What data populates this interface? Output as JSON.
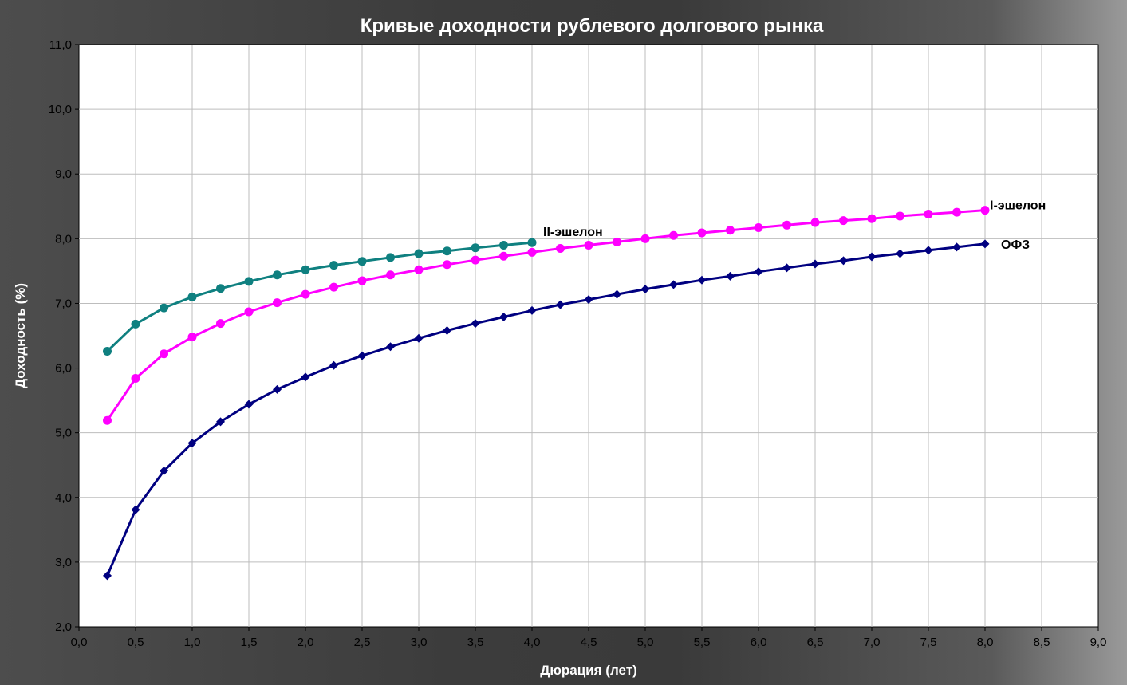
{
  "chart_data": {
    "type": "line",
    "title": "Кривые доходности рублевого долгового рынка",
    "xlabel": "Дюрация (лет)",
    "ylabel": "Доходность (%)",
    "xlim": [
      0,
      9
    ],
    "ylim": [
      2,
      11
    ],
    "x_ticks": [
      "0,0",
      "0,5",
      "1,0",
      "1,5",
      "2,0",
      "2,5",
      "3,0",
      "3,5",
      "4,0",
      "4,5",
      "5,0",
      "5,5",
      "6,0",
      "6,5",
      "7,0",
      "7,5",
      "8,0",
      "8,5",
      "9,0"
    ],
    "y_ticks": [
      "2,0",
      "3,0",
      "4,0",
      "5,0",
      "6,0",
      "7,0",
      "8,0",
      "9,0",
      "10,0",
      "11,0"
    ],
    "grid": true,
    "series": [
      {
        "name": "II-эшелон",
        "color": "#0f8080",
        "marker": "circle",
        "x": [
          0.25,
          0.5,
          0.75,
          1.0,
          1.25,
          1.5,
          1.75,
          2.0,
          2.25,
          2.5,
          2.75,
          3.0,
          3.25,
          3.5,
          3.75,
          4.0
        ],
        "y": [
          6.26,
          6.68,
          6.93,
          7.1,
          7.23,
          7.34,
          7.44,
          7.52,
          7.59,
          7.65,
          7.71,
          7.77,
          7.81,
          7.86,
          7.9,
          7.94
        ]
      },
      {
        "name": "I-эшелон",
        "color": "#ff00ff",
        "marker": "circle",
        "x": [
          0.25,
          0.5,
          0.75,
          1.0,
          1.25,
          1.5,
          1.75,
          2.0,
          2.25,
          2.5,
          2.75,
          3.0,
          3.25,
          3.5,
          3.75,
          4.0,
          4.25,
          4.5,
          4.75,
          5.0,
          5.25,
          5.5,
          5.75,
          6.0,
          6.25,
          6.5,
          6.75,
          7.0,
          7.25,
          7.5,
          7.75,
          8.0
        ],
        "y": [
          5.19,
          5.84,
          6.22,
          6.48,
          6.69,
          6.87,
          7.01,
          7.14,
          7.25,
          7.35,
          7.44,
          7.52,
          7.6,
          7.67,
          7.73,
          7.79,
          7.85,
          7.9,
          7.95,
          8.0,
          8.05,
          8.09,
          8.13,
          8.17,
          8.21,
          8.25,
          8.28,
          8.31,
          8.35,
          8.38,
          8.41,
          8.44
        ]
      },
      {
        "name": "ОФЗ",
        "color": "#000080",
        "marker": "diamond",
        "x": [
          0.25,
          0.5,
          0.75,
          1.0,
          1.25,
          1.5,
          1.75,
          2.0,
          2.25,
          2.5,
          2.75,
          3.0,
          3.25,
          3.5,
          3.75,
          4.0,
          4.25,
          4.5,
          4.75,
          5.0,
          5.25,
          5.5,
          5.75,
          6.0,
          6.25,
          6.5,
          6.75,
          7.0,
          7.25,
          7.5,
          7.75,
          8.0
        ],
        "y": [
          2.79,
          3.81,
          4.41,
          4.84,
          5.17,
          5.44,
          5.67,
          5.86,
          6.04,
          6.19,
          6.33,
          6.46,
          6.58,
          6.69,
          6.79,
          6.89,
          6.98,
          7.06,
          7.14,
          7.22,
          7.29,
          7.36,
          7.42,
          7.49,
          7.55,
          7.61,
          7.66,
          7.72,
          7.77,
          7.82,
          7.87,
          7.92
        ]
      }
    ]
  }
}
